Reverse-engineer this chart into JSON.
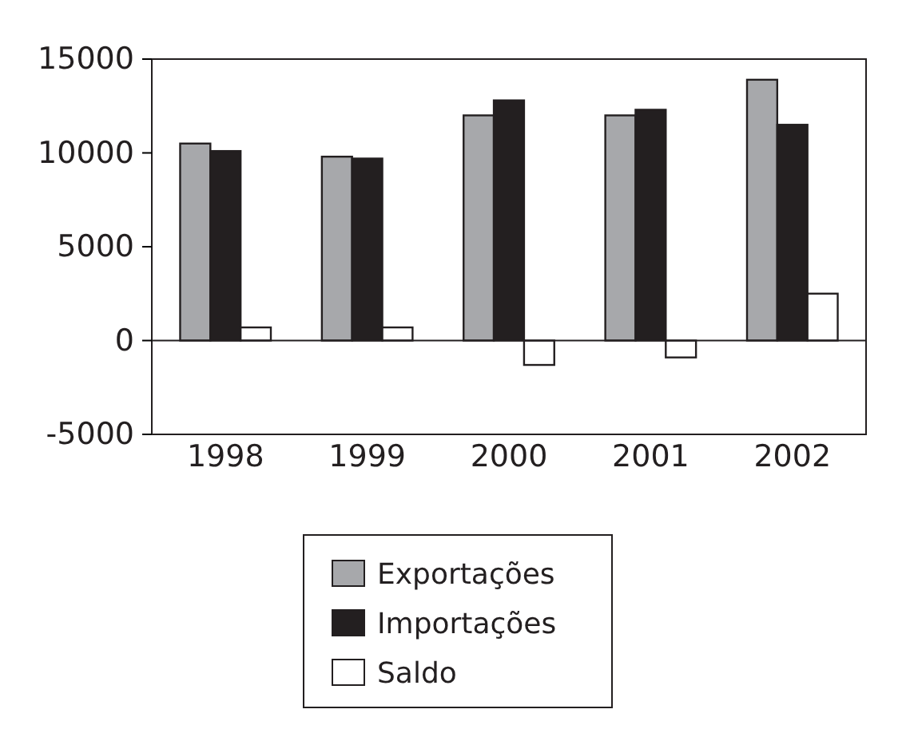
{
  "chart_data": {
    "type": "bar",
    "categories": [
      "1998",
      "1999",
      "2000",
      "2001",
      "2002"
    ],
    "series": [
      {
        "name": "Exportações",
        "color": "#a7a8ab",
        "values": [
          10500,
          9800,
          12000,
          12000,
          13900
        ]
      },
      {
        "name": "Importações",
        "color": "#231f20",
        "values": [
          10100,
          9700,
          12800,
          12300,
          11500
        ]
      },
      {
        "name": "Saldo",
        "color": "#ffffff",
        "values": [
          700,
          700,
          -1300,
          -900,
          2500
        ]
      }
    ],
    "ylim": [
      -5000,
      15000
    ],
    "yticks": [
      -5000,
      0,
      5000,
      10000,
      15000
    ],
    "ref_lines": [
      {
        "axis": "y",
        "value": 0,
        "color": "#231f20"
      }
    ],
    "legend": "bottom"
  }
}
